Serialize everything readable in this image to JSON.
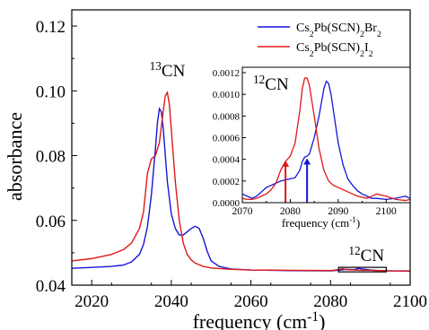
{
  "chart_data": [
    {
      "type": "line",
      "xlabel": "frequency (cm",
      "xlabel_sup": "-1",
      "xlabel_close": ")",
      "ylabel": "absorbance",
      "xlim": [
        2015,
        2100
      ],
      "ylim": [
        0.04,
        0.125
      ],
      "xticks": [
        2020,
        2040,
        2060,
        2080,
        2100
      ],
      "yticks": [
        0.04,
        0.06,
        0.08,
        0.1,
        0.12
      ],
      "ytick_labels": [
        "0.04",
        "0.06",
        "0.08",
        "0.10",
        "0.12"
      ],
      "legend": {
        "position": "top-right",
        "entries": [
          {
            "color": "#1515d8",
            "parts": [
              [
                "Cs",
                ""
              ],
              [
                "2",
                "sub"
              ],
              [
                "Pb(SCN)",
                ""
              ],
              [
                "2",
                "sub"
              ],
              [
                "Br",
                ""
              ],
              [
                "2",
                "sub"
              ]
            ]
          },
          {
            "color": "#e01818",
            "parts": [
              [
                "Cs",
                ""
              ],
              [
                "2",
                "sub"
              ],
              [
                "Pb(SCN)",
                ""
              ],
              [
                "2",
                "sub"
              ],
              [
                "I",
                ""
              ],
              [
                "2",
                "sub"
              ]
            ]
          }
        ]
      },
      "annotations": [
        {
          "id": "c13",
          "sup": "13",
          "text": "CN",
          "x": 2039,
          "y": 0.1045
        },
        {
          "id": "c12",
          "sup": "12",
          "text": "CN",
          "x": 2089,
          "y": 0.0475
        }
      ],
      "highlight_box": {
        "x0": 2082,
        "x1": 2094,
        "y0": 0.0441,
        "y1": 0.0455
      },
      "series": [
        {
          "color": "#1515d8",
          "x": [
            2015,
            2020,
            2025,
            2028,
            2030,
            2032,
            2033,
            2034,
            2035,
            2036,
            2036.5,
            2037,
            2037.5,
            2038,
            2038.5,
            2039,
            2040,
            2041,
            2042,
            2043,
            2044,
            2045,
            2046,
            2047,
            2048,
            2049,
            2050,
            2052,
            2055,
            2060,
            2070,
            2080,
            2082,
            2084,
            2086,
            2087,
            2088,
            2090,
            2092,
            2095,
            2100
          ],
          "y": [
            0.0452,
            0.0455,
            0.0458,
            0.0462,
            0.0472,
            0.0495,
            0.0525,
            0.058,
            0.068,
            0.082,
            0.09,
            0.0945,
            0.0935,
            0.088,
            0.08,
            0.072,
            0.062,
            0.0575,
            0.0555,
            0.0555,
            0.0565,
            0.0575,
            0.0582,
            0.0575,
            0.0545,
            0.0505,
            0.0475,
            0.0458,
            0.045,
            0.0447,
            0.0445,
            0.0444,
            0.0446,
            0.0449,
            0.0448,
            0.0452,
            0.045,
            0.0447,
            0.0445,
            0.0444,
            0.0443
          ]
        },
        {
          "color": "#e01818",
          "x": [
            2015,
            2020,
            2025,
            2028,
            2030,
            2032,
            2033,
            2034,
            2035,
            2036,
            2037,
            2038,
            2038.5,
            2039,
            2039.5,
            2040,
            2041,
            2042,
            2043,
            2044,
            2045,
            2046,
            2048,
            2050,
            2055,
            2060,
            2070,
            2080,
            2082,
            2083,
            2084,
            2086,
            2088,
            2090,
            2092,
            2095,
            2100
          ],
          "y": [
            0.0475,
            0.0482,
            0.0495,
            0.051,
            0.053,
            0.0575,
            0.0625,
            0.0745,
            0.079,
            0.08,
            0.084,
            0.094,
            0.0985,
            0.0995,
            0.096,
            0.088,
            0.072,
            0.06,
            0.053,
            0.0495,
            0.0478,
            0.0468,
            0.0458,
            0.0453,
            0.0449,
            0.0447,
            0.0446,
            0.0445,
            0.0448,
            0.0451,
            0.0448,
            0.0447,
            0.0446,
            0.0446,
            0.0445,
            0.0444,
            0.0444
          ]
        }
      ]
    },
    {
      "type": "line",
      "inset": true,
      "title_sup": "12",
      "title": "CN",
      "xlabel": "frequency (cm",
      "xlabel_sup": "-1",
      "xlabel_close": ")",
      "xlim": [
        2070,
        2105
      ],
      "ylim": [
        0,
        0.00125
      ],
      "xticks": [
        2070,
        2080,
        2090,
        2100
      ],
      "yticks": [
        0.0,
        0.0002,
        0.0004,
        0.0006,
        0.0008,
        0.001,
        0.0012
      ],
      "ytick_labels": [
        "0.0000",
        "0.0002",
        "0.0004",
        "0.0006",
        "0.0008",
        "0.0010",
        "0.0012"
      ],
      "arrows": [
        {
          "color": "#e01818",
          "x": 2079,
          "y_from": 0.0,
          "y_to": 0.00039
        },
        {
          "color": "#1515d8",
          "x": 2083.5,
          "y_from": 0.0,
          "y_to": 0.00041
        }
      ],
      "series": [
        {
          "color": "#1515d8",
          "x": [
            2070,
            2071,
            2072,
            2073,
            2074,
            2075,
            2076,
            2077,
            2078,
            2079,
            2080,
            2081,
            2082,
            2082.5,
            2083,
            2083.5,
            2084,
            2085,
            2086,
            2087,
            2087.5,
            2088,
            2088.5,
            2089,
            2090,
            2091,
            2092,
            2093,
            2094,
            2095,
            2096,
            2097,
            2098,
            2100,
            2102,
            2104,
            2105
          ],
          "y": [
            8e-05,
            6e-05,
            4e-05,
            6e-05,
            0.0001,
            0.00014,
            0.00016,
            0.00018,
            0.0002,
            0.00021,
            0.00022,
            0.00023,
            0.0003,
            0.00038,
            0.00042,
            0.00043,
            0.00045,
            0.0006,
            0.0008,
            0.00105,
            0.00112,
            0.0011,
            0.001,
            0.00085,
            0.00055,
            0.00035,
            0.00022,
            0.00016,
            0.00011,
            8e-05,
            6e-05,
            4e-05,
            4e-05,
            3e-05,
            4e-05,
            6e-05,
            4e-05
          ]
        },
        {
          "color": "#e01818",
          "x": [
            2070,
            2071,
            2072,
            2073,
            2074,
            2075,
            2076,
            2077,
            2078,
            2079,
            2080,
            2081,
            2082,
            2082.5,
            2083,
            2083.5,
            2084,
            2085,
            2086,
            2087,
            2088,
            2089,
            2090,
            2091,
            2092,
            2094,
            2096,
            2098,
            2100,
            2102,
            2104,
            2105
          ],
          "y": [
            4e-05,
            3e-05,
            3e-05,
            4e-05,
            6e-05,
            8e-05,
            0.00012,
            0.00018,
            0.0003,
            0.00038,
            0.00043,
            0.00055,
            0.00085,
            0.00105,
            0.00115,
            0.00115,
            0.00108,
            0.0008,
            0.0005,
            0.0003,
            0.0002,
            0.00016,
            0.00014,
            0.00012,
            0.0001,
            6e-05,
            4e-05,
            8e-05,
            6e-05,
            3e-05,
            2e-05,
            3e-05
          ]
        }
      ]
    }
  ]
}
